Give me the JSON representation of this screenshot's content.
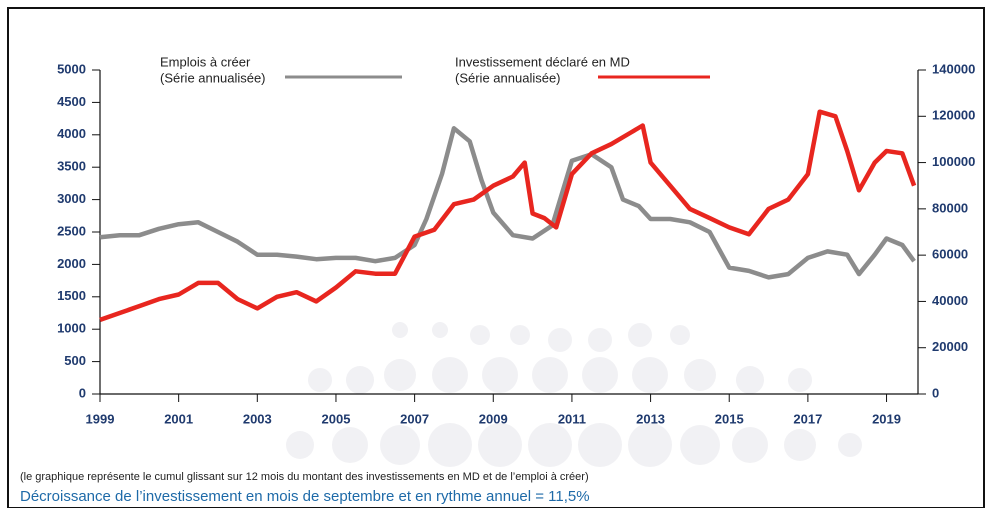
{
  "chart_data": {
    "type": "line",
    "series": [
      {
        "name": "Emplois à créer",
        "note": "(Série annualisée)",
        "color": "#8c8c8c",
        "axis": "y",
        "x": [
          1999,
          1999.5,
          2000,
          2000.5,
          2001,
          2001.5,
          2002,
          2002.5,
          2003,
          2003.5,
          2004,
          2004.5,
          2005,
          2005.5,
          2006,
          2006.5,
          2007,
          2007.3,
          2007.7,
          2008,
          2008.4,
          2008.7,
          2009,
          2009.5,
          2010,
          2010.5,
          2011,
          2011.5,
          2012,
          2012.3,
          2012.7,
          2013,
          2013.5,
          2014,
          2014.5,
          2015,
          2015.5,
          2016,
          2016.5,
          2017,
          2017.5,
          2018,
          2018.3,
          2018.7,
          2019,
          2019.4,
          2019.7
        ],
        "values": [
          2420,
          2450,
          2450,
          2550,
          2620,
          2650,
          2500,
          2350,
          2150,
          2150,
          2120,
          2080,
          2100,
          2100,
          2050,
          2100,
          2300,
          2700,
          3400,
          4100,
          3900,
          3300,
          2800,
          2450,
          2400,
          2600,
          3600,
          3700,
          3500,
          3000,
          2900,
          2700,
          2700,
          2650,
          2500,
          1950,
          1900,
          1800,
          1850,
          2100,
          2200,
          2150,
          1850,
          2150,
          2400,
          2300,
          2050
        ]
      },
      {
        "name": "Investissement déclaré en MD",
        "note": "(Série annualisée)",
        "color": "#e8261f",
        "axis": "y2",
        "x": [
          1999,
          1999.5,
          2000,
          2000.5,
          2001,
          2001.5,
          2002,
          2002.5,
          2003,
          2003.5,
          2004,
          2004.5,
          2005,
          2005.5,
          2006,
          2006.5,
          2007,
          2007.5,
          2008,
          2008.5,
          2009,
          2009.5,
          2009.8,
          2010,
          2010.3,
          2010.6,
          2011,
          2011.5,
          2012,
          2012.5,
          2012.8,
          2013,
          2013.5,
          2014,
          2014.5,
          2015,
          2015.5,
          2016,
          2016.5,
          2017,
          2017.3,
          2017.7,
          2018,
          2018.3,
          2018.7,
          2019,
          2019.4,
          2019.7
        ],
        "values": [
          32000,
          35000,
          38000,
          41000,
          43000,
          48000,
          48000,
          41000,
          37000,
          42000,
          44000,
          40000,
          46000,
          53000,
          52000,
          52000,
          68000,
          71000,
          82000,
          84000,
          90000,
          94000,
          100000,
          78000,
          76000,
          72000,
          95000,
          104000,
          108000,
          113000,
          116000,
          100000,
          90000,
          80000,
          76000,
          72000,
          69000,
          80000,
          84000,
          95000,
          122000,
          120000,
          105000,
          88000,
          100000,
          105000,
          104000,
          90000
        ]
      }
    ],
    "xlim": [
      1999,
      2019.8
    ],
    "xticks": [
      1999,
      2001,
      2003,
      2005,
      2007,
      2009,
      2011,
      2013,
      2015,
      2017,
      2019
    ],
    "ylim": [
      0,
      5000
    ],
    "yticks": [
      0,
      500,
      1000,
      1500,
      2000,
      2500,
      3000,
      3500,
      4000,
      4500,
      5000
    ],
    "y2lim": [
      0,
      140000
    ],
    "y2ticks": [
      0,
      20000,
      40000,
      60000,
      80000,
      100000,
      120000,
      140000
    ],
    "footnote": "(le graphique représente le cumul glissant sur 12 mois du montant des investissements en MD et de l’emploi à créer)",
    "caption": "Décroissance de l’investissement en mois de septembre et en rythme annuel = 11,5%"
  }
}
